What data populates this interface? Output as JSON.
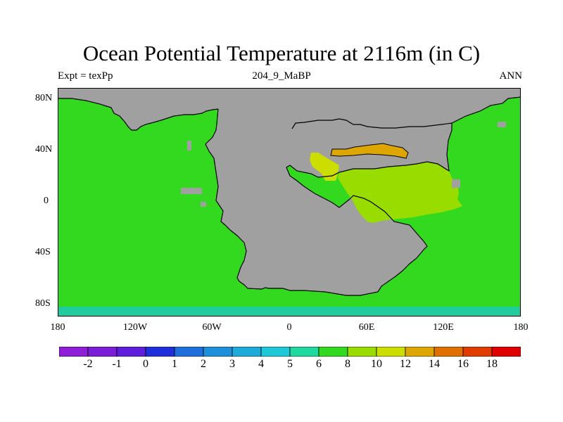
{
  "title": "Ocean Potential Temperature at 2116m (in C)",
  "subtitle_left": "Expt = texPp",
  "subtitle_center": "204_9_MaBP",
  "subtitle_right": "ANN",
  "x_ticks": [
    "180",
    "120W",
    "60W",
    "0",
    "60E",
    "120E",
    "180"
  ],
  "y_ticks": [
    "80N",
    "40N",
    "0",
    "40S",
    "80S"
  ],
  "colors": {
    "land": "#a0a0a0",
    "ocean_6_8": "#33d91e",
    "ocean_8_10": "#99dd00",
    "ocean_10_12": "#ccdd00",
    "ocean_12_14": "#dda600",
    "ocean_4_5": "#20cc9f",
    "outline": "#000000"
  },
  "colorbar": {
    "colors": [
      "#8f1ed9",
      "#7a1ed9",
      "#5e1edb",
      "#1e30db",
      "#1e6fdb",
      "#1e8fdb",
      "#1eabdb",
      "#1ec8d9",
      "#20d9a0",
      "#33d91e",
      "#99dd00",
      "#ccdd00",
      "#dda600",
      "#e07000",
      "#e03c00",
      "#e00000"
    ],
    "labels": [
      "-2",
      "-1",
      "0",
      "1",
      "2",
      "3",
      "4",
      "5",
      "6",
      "8",
      "10",
      "12",
      "14",
      "16",
      "18"
    ]
  }
}
